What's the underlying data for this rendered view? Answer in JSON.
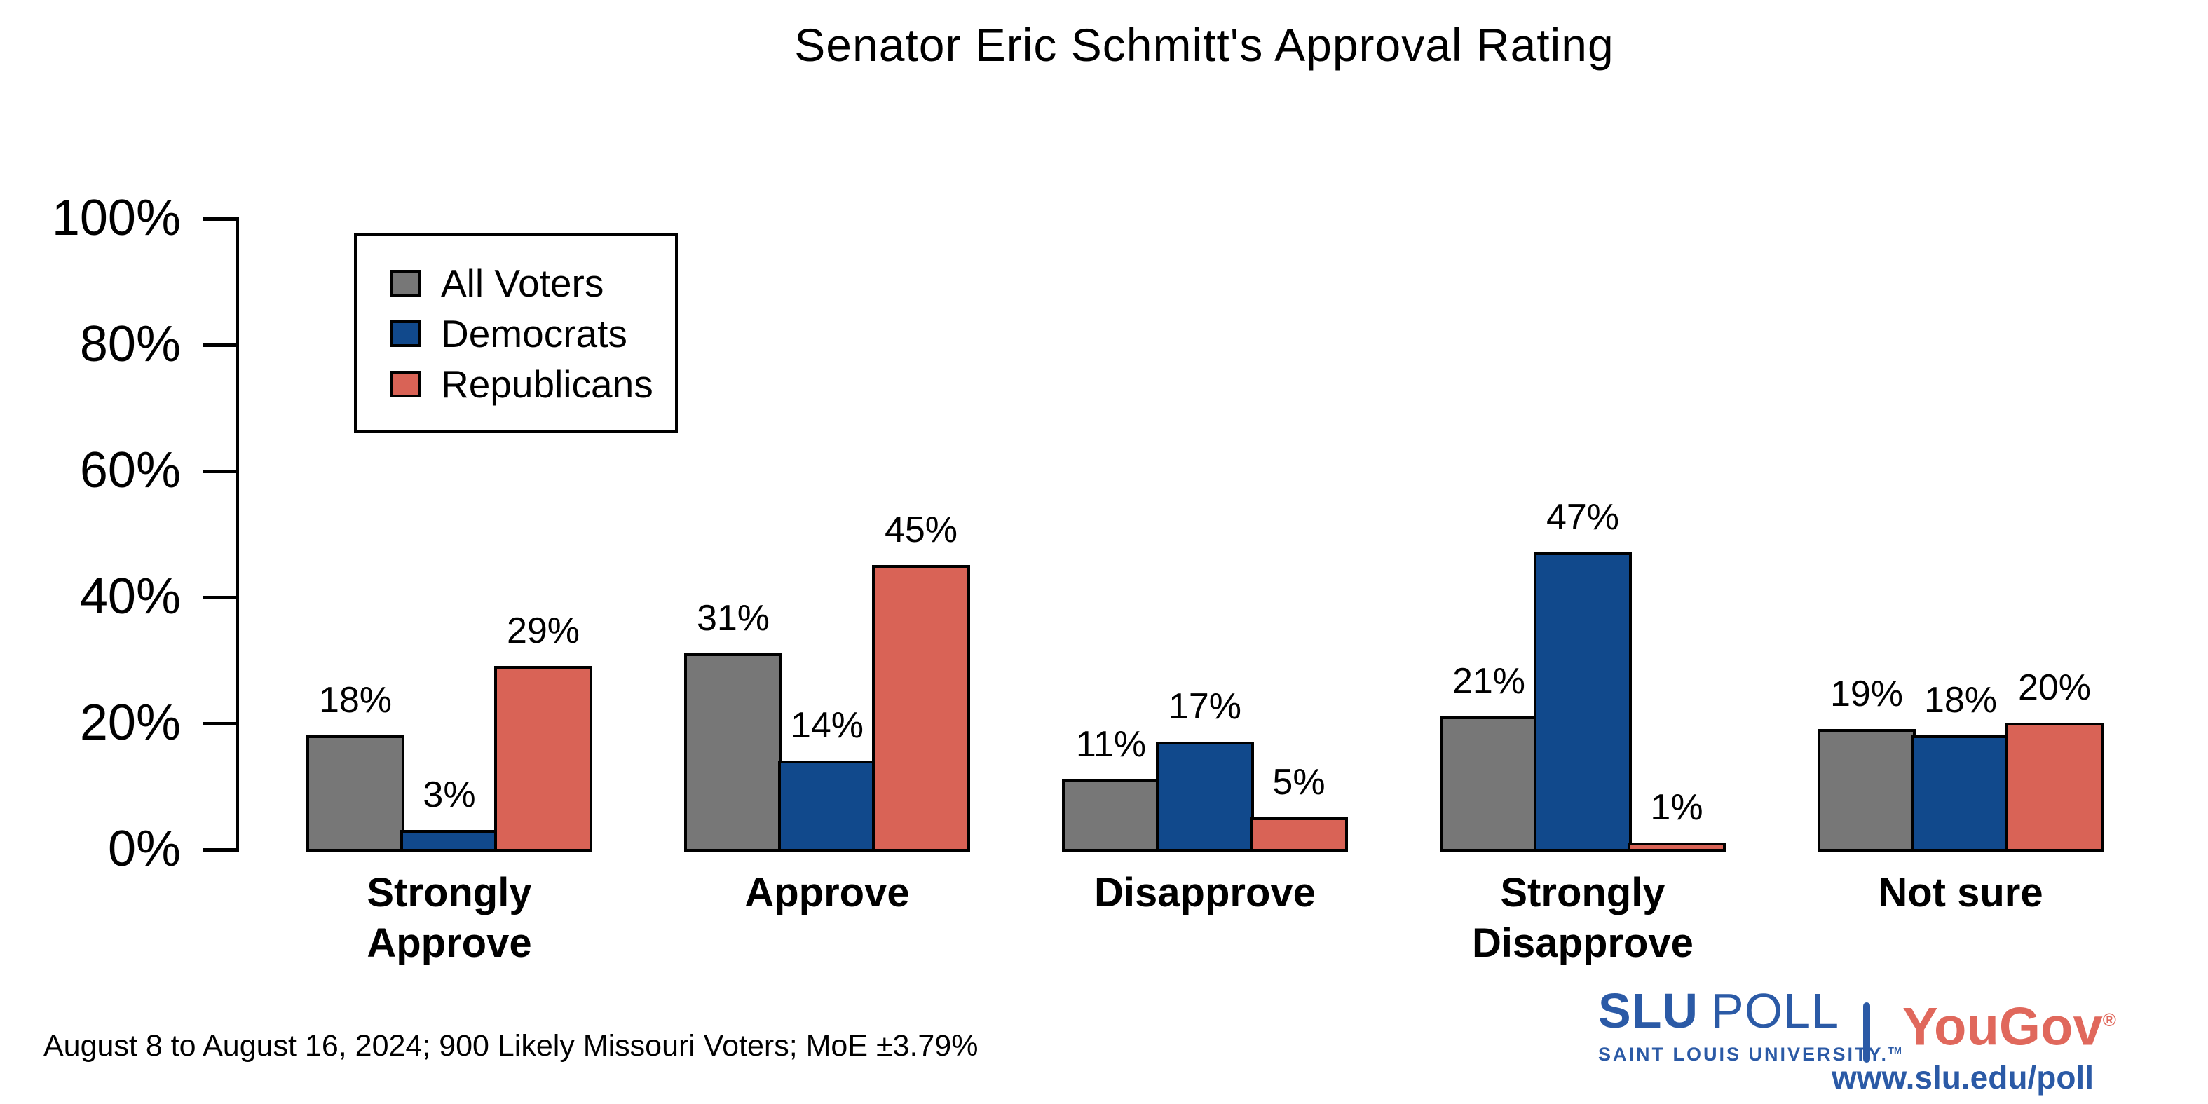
{
  "title": "Senator Eric Schmitt's Approval Rating",
  "axis": {
    "y_ticks": [
      "0%",
      "20%",
      "40%",
      "60%",
      "80%",
      "100%"
    ]
  },
  "legend": {
    "items": [
      {
        "label": "All Voters",
        "color": "#777777"
      },
      {
        "label": "Democrats",
        "color": "#11498C"
      },
      {
        "label": "Republicans",
        "color": "#D96356"
      }
    ]
  },
  "chart_data": {
    "type": "bar",
    "title": "Senator Eric Schmitt's Approval Rating",
    "categories": [
      "Strongly Approve",
      "Approve",
      "Disapprove",
      "Strongly Disapprove",
      "Not sure"
    ],
    "categories_wrapped": [
      [
        "Strongly",
        "Approve"
      ],
      [
        "Approve"
      ],
      [
        "Disapprove"
      ],
      [
        "Strongly",
        "Disapprove"
      ],
      [
        "Not sure"
      ]
    ],
    "series": [
      {
        "name": "All Voters",
        "color": "#777777",
        "values": [
          18,
          31,
          11,
          21,
          19
        ]
      },
      {
        "name": "Democrats",
        "color": "#11498C",
        "values": [
          3,
          14,
          17,
          47,
          18
        ]
      },
      {
        "name": "Republicans",
        "color": "#D96356",
        "values": [
          29,
          45,
          5,
          1,
          20
        ]
      }
    ],
    "value_label_format": "{value}%",
    "xlabel": "",
    "ylabel": "",
    "ylim": [
      0,
      100
    ],
    "y_tick_step": 20,
    "grid": false,
    "legend_position": "upper-left",
    "bar_outline_color": "#000000"
  },
  "footer": {
    "note": "August 8 to August 16, 2024; 900 Likely Missouri Voters; MoE ±3.79%"
  },
  "branding": {
    "slu_wordmark_bold": "SLU",
    "slu_wordmark_light": "POLL",
    "slu_subtitle": "SAINT LOUIS UNIVERSITY.",
    "slu_trademark": "TM",
    "partner_name": "YouGov",
    "partner_registered": "®",
    "website": "www.slu.edu/poll",
    "slu_blue": "#2B5AA6",
    "partner_red": "#E0685C"
  }
}
